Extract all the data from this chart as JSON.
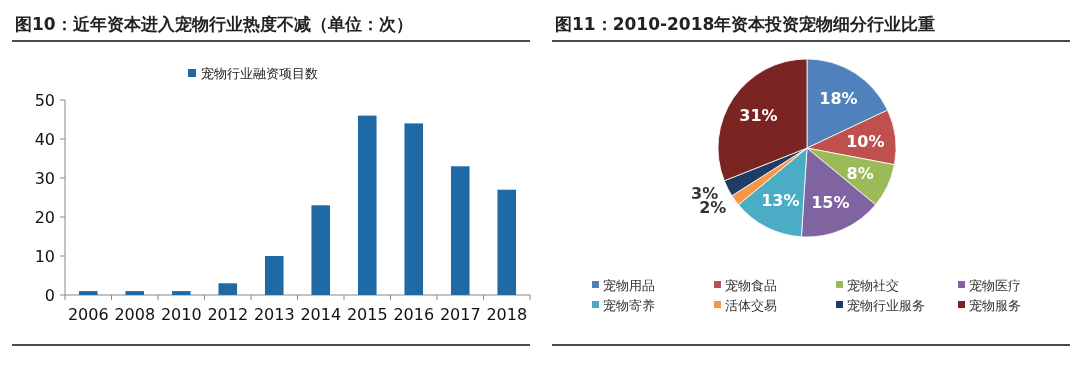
{
  "chart_data": [
    {
      "type": "bar",
      "title": "图10：近年资本进入宠物行业热度不减（单位：次）",
      "categories": [
        "2006",
        "2008",
        "2010",
        "2012",
        "2013",
        "2014",
        "2015",
        "2016",
        "2017",
        "2018"
      ],
      "series": [
        {
          "name": "宠物行业融资项目数",
          "color": "#1f6aa5",
          "values": [
            1,
            1,
            1,
            3,
            10,
            23,
            46,
            44,
            33,
            27
          ]
        }
      ],
      "ylim": [
        0,
        50
      ],
      "yticks": [
        0,
        10,
        20,
        30,
        40,
        50
      ],
      "grid": false,
      "legend": "top"
    },
    {
      "type": "pie",
      "title": "图11：2010-2018年资本投资宠物细分行业比重",
      "categories": [
        "宠物用品",
        "宠物食品",
        "宠物社交",
        "宠物医疗",
        "宠物寄养",
        "活体交易",
        "宠物行业服务",
        "宠物服务"
      ],
      "values": [
        18,
        10,
        8,
        15,
        13,
        2,
        3,
        31
      ],
      "colors": [
        "#4f81bd",
        "#c0504d",
        "#9bbb59",
        "#8064a2",
        "#4bacc6",
        "#f79646",
        "#1f3c64",
        "#7b2424"
      ],
      "value_labels": [
        "18%",
        "10%",
        "8%",
        "15%",
        "13%",
        "2%",
        "3%",
        "31%"
      ],
      "legend": "bottom"
    }
  ]
}
